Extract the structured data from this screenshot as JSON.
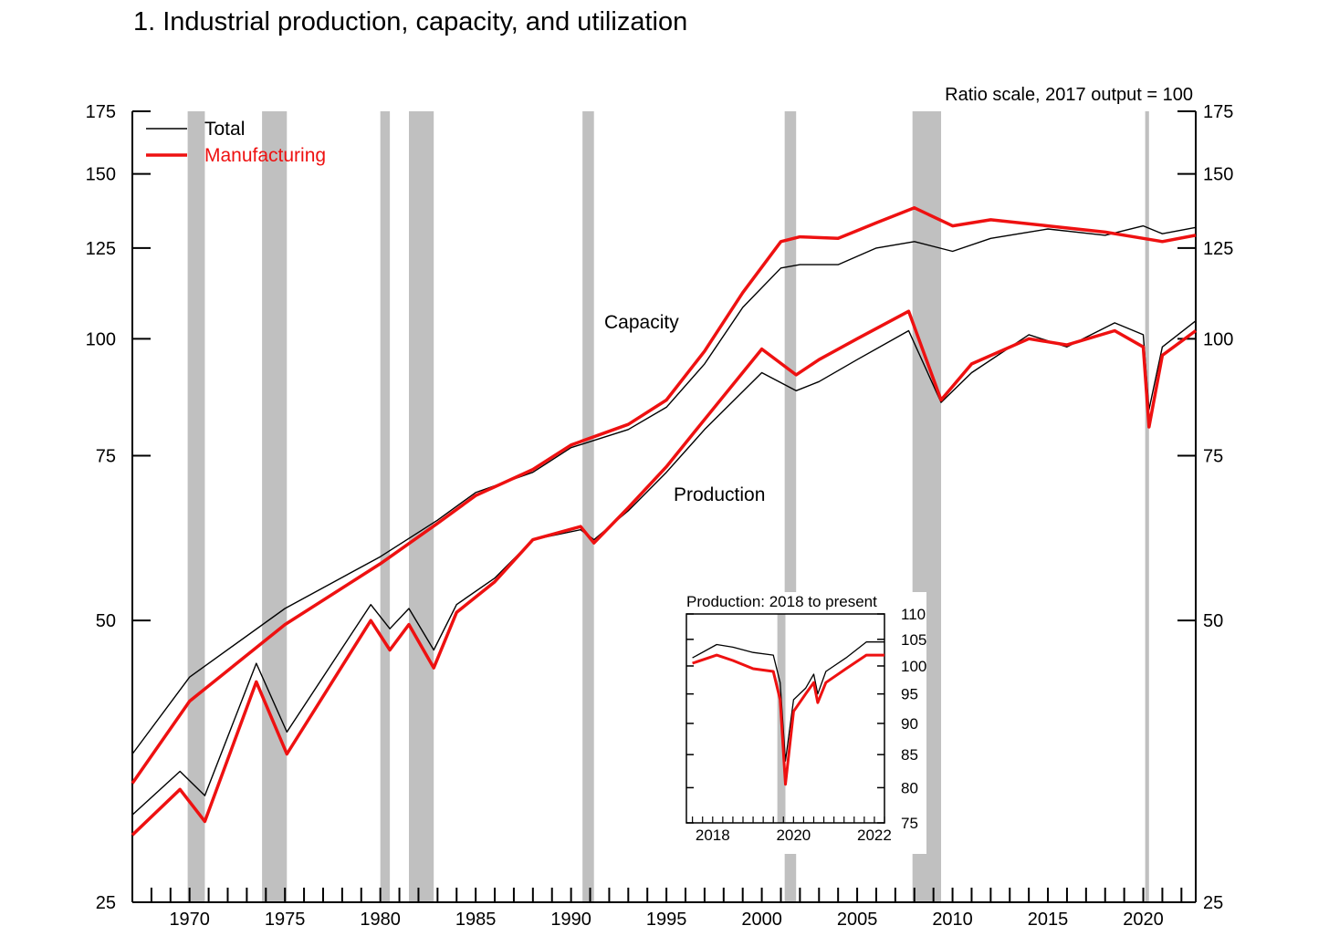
{
  "title": "1.  Industrial production, capacity, and utilization",
  "chart_data": [
    {
      "type": "line",
      "scale_note": "Ratio scale, 2017 output = 100",
      "y_scale": "log",
      "ylim": [
        25,
        175
      ],
      "xlim": [
        1967,
        2022.75
      ],
      "y_ticks": [
        25,
        50,
        75,
        100,
        125,
        150,
        175
      ],
      "x_ticks": [
        1970,
        1975,
        1980,
        1985,
        1990,
        1995,
        2000,
        2005,
        2010,
        2015,
        2020
      ],
      "legend": {
        "placement": "top-left",
        "entries": [
          "Total",
          "Manufacturing"
        ]
      },
      "annotations": [
        "Capacity",
        "Production"
      ],
      "colors": {
        "Total": "#000000",
        "Manufacturing": "#ee1111",
        "recession": "#c0c0c0"
      },
      "recessions": [
        [
          1969.9,
          1970.8
        ],
        [
          1973.8,
          1975.1
        ],
        [
          1980.0,
          1980.5
        ],
        [
          1981.5,
          1982.8
        ],
        [
          1990.6,
          1991.2
        ],
        [
          2001.2,
          2001.8
        ],
        [
          2007.9,
          2009.4
        ],
        [
          2020.1,
          2020.3
        ]
      ],
      "series": [
        {
          "name": "Total",
          "group": "Capacity",
          "x": [
            1967,
            1970,
            1975,
            1980,
            1983,
            1985,
            1988,
            1990,
            1993,
            1995,
            1997,
            1999,
            2001,
            2002,
            2004,
            2006,
            2008,
            2010,
            2012,
            2015,
            2018,
            2020,
            2021,
            2022.75
          ],
          "values": [
            36,
            43.5,
            51.5,
            58.5,
            64,
            68.5,
            72,
            76.5,
            80,
            84.5,
            94,
            108,
            119,
            120,
            120,
            125,
            127,
            124,
            128,
            131,
            129,
            132,
            129.5,
            131.5
          ]
        },
        {
          "name": "Manufacturing",
          "group": "Capacity",
          "x": [
            1967,
            1970,
            1975,
            1980,
            1983,
            1985,
            1988,
            1990,
            1993,
            1995,
            1997,
            1999,
            2001,
            2002,
            2004,
            2006,
            2008,
            2010,
            2012,
            2015,
            2018,
            2020,
            2021,
            2022.75
          ],
          "values": [
            33.5,
            41,
            49.5,
            57.5,
            63.5,
            68,
            72.5,
            77,
            81,
            86,
            97,
            112,
            127,
            128.5,
            128,
            133,
            138,
            132,
            134,
            132,
            130,
            128,
            127,
            129
          ]
        },
        {
          "name": "Total",
          "group": "Production",
          "x": [
            1967,
            1969.5,
            1970.8,
            1973.5,
            1975.1,
            1979.5,
            1980.5,
            1981.5,
            1982.8,
            1984,
            1986,
            1988,
            1990.5,
            1991.2,
            1993,
            1995,
            1997,
            2000,
            2001.8,
            2003,
            2005,
            2007.7,
            2009.4,
            2011,
            2014,
            2016,
            2018.5,
            2020.0,
            2020.3,
            2021,
            2022.75
          ],
          "values": [
            31,
            34.5,
            32.5,
            45,
            38,
            52,
            49,
            51.5,
            46.5,
            52,
            55.5,
            61,
            62.5,
            61,
            65.5,
            72,
            80,
            92,
            88,
            90,
            95,
            102,
            85.5,
            92,
            101,
            98,
            104,
            101,
            84,
            98,
            104.5
          ]
        },
        {
          "name": "Manufacturing",
          "group": "Production",
          "x": [
            1967,
            1969.5,
            1970.8,
            1973.5,
            1975.1,
            1979.5,
            1980.5,
            1981.5,
            1982.8,
            1984,
            1986,
            1988,
            1990.5,
            1991.2,
            1993,
            1995,
            1997,
            2000,
            2001.8,
            2003,
            2005,
            2007.7,
            2009.4,
            2011,
            2014,
            2016,
            2018.5,
            2020.0,
            2020.3,
            2021,
            2022.75
          ],
          "values": [
            29.5,
            33,
            30.5,
            43,
            36,
            50,
            46.5,
            49.5,
            44.5,
            51,
            55,
            61,
            63,
            60.5,
            66,
            73,
            82,
            97.5,
            91.5,
            95,
            100,
            107,
            86,
            94,
            100,
            98.5,
            102,
            98,
            80.5,
            96,
            102
          ]
        }
      ]
    },
    {
      "type": "line",
      "title": "Production: 2018 to present",
      "y_scale": "log",
      "ylim": [
        75,
        110
      ],
      "xlim": [
        2017.85,
        2022.75
      ],
      "y_ticks": [
        75,
        80,
        85,
        90,
        95,
        100,
        105,
        110
      ],
      "x_ticks": [
        2018,
        2020,
        2022
      ],
      "recessions": [
        [
          2020.1,
          2020.3
        ]
      ],
      "series": [
        {
          "name": "Total",
          "x": [
            2018.0,
            2018.6,
            2019.0,
            2019.5,
            2020.0,
            2020.17,
            2020.3,
            2020.5,
            2020.8,
            2021.0,
            2021.1,
            2021.3,
            2021.8,
            2022.3,
            2022.75
          ],
          "values": [
            101.5,
            104,
            103.5,
            102.5,
            102,
            97,
            84,
            94,
            96,
            98.5,
            95,
            99,
            101.5,
            104.5,
            104.5
          ]
        },
        {
          "name": "Manufacturing",
          "x": [
            2018.0,
            2018.6,
            2019.0,
            2019.5,
            2020.0,
            2020.17,
            2020.3,
            2020.5,
            2020.8,
            2021.0,
            2021.1,
            2021.3,
            2021.8,
            2022.3,
            2022.75
          ],
          "values": [
            100.5,
            102,
            101,
            99.5,
            99,
            94,
            80.5,
            92,
            95,
            97,
            93.5,
            97,
            99.5,
            102,
            102
          ]
        }
      ]
    }
  ]
}
